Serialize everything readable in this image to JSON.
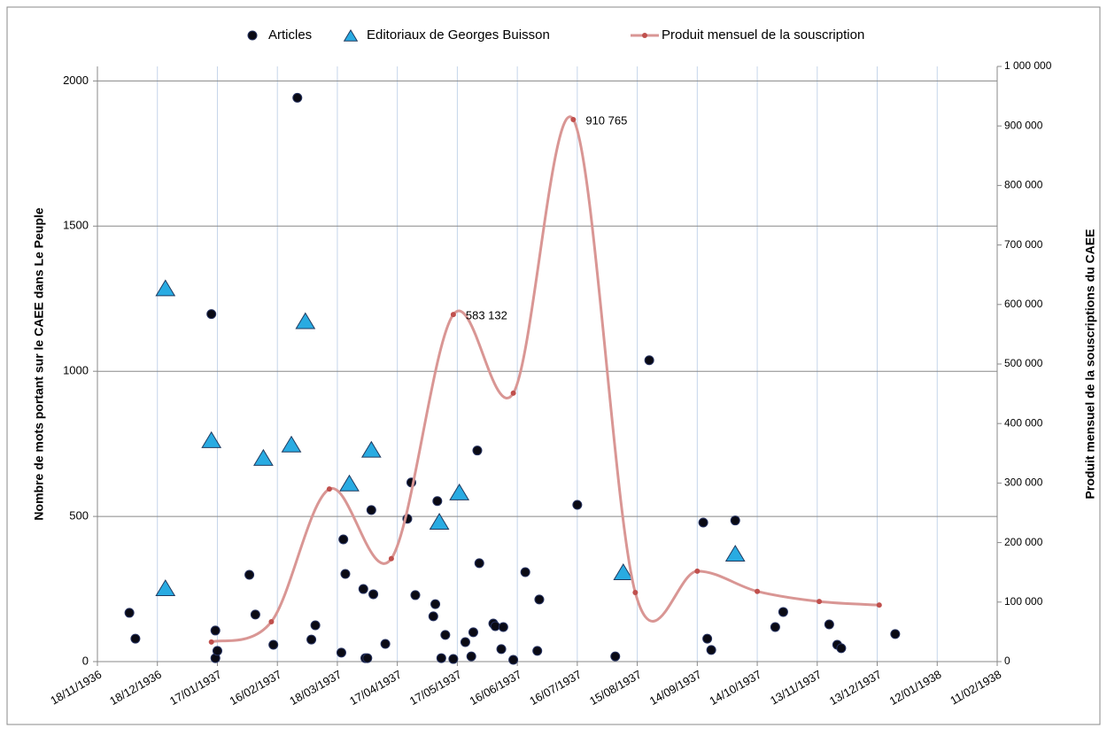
{
  "chart_data": {
    "type": "scatter",
    "y_label": "Nombre de mots portant sur le CAEE dans Le Peuple",
    "y2_label": "Produit mensuel de la souscriptions du CAEE",
    "xlim": [
      "18/11/1936",
      "11/02/1938"
    ],
    "xticks": [
      "18/11/1936",
      "18/12/1936",
      "17/01/1937",
      "16/02/1937",
      "18/03/1937",
      "17/04/1937",
      "17/05/1937",
      "16/06/1937",
      "16/07/1937",
      "15/08/1937",
      "14/09/1937",
      "14/10/1937",
      "13/11/1937",
      "13/12/1937",
      "12/01/1938",
      "11/02/1938"
    ],
    "ylim": [
      0,
      2050
    ],
    "yticks": [
      0,
      500,
      1000,
      1500,
      2000
    ],
    "y2lim": [
      0,
      1000000
    ],
    "y2ticks": [
      {
        "value": 0,
        "label": "0"
      },
      {
        "value": 100000,
        "label": "100 000"
      },
      {
        "value": 200000,
        "label": "200 000"
      },
      {
        "value": 300000,
        "label": "300 000"
      },
      {
        "value": 400000,
        "label": "400 000"
      },
      {
        "value": 500000,
        "label": "500 000"
      },
      {
        "value": 600000,
        "label": "600 000"
      },
      {
        "value": 700000,
        "label": "700 000"
      },
      {
        "value": 800000,
        "label": "800 000"
      },
      {
        "value": 900000,
        "label": "900 000"
      },
      {
        "value": 1000000,
        "label": "1 000 000"
      }
    ],
    "grid": true,
    "legend": "top",
    "series": [
      {
        "name": "Articles",
        "type": "scatter",
        "marker": "circle",
        "color": "#0a0a14",
        "x": [
          "04/12/1936",
          "07/12/1936",
          "14/01/1937",
          "16/01/1937",
          "16/01/1937",
          "17/01/1937",
          "02/02/1937",
          "05/02/1937",
          "14/02/1937",
          "26/02/1937",
          "05/03/1937",
          "07/03/1937",
          "20/03/1937",
          "21/03/1937",
          "22/03/1937",
          "31/03/1937",
          "01/04/1937",
          "02/04/1937",
          "04/04/1937",
          "05/04/1937",
          "11/04/1937",
          "22/04/1937",
          "24/04/1937",
          "26/04/1937",
          "05/05/1937",
          "06/05/1937",
          "07/05/1937",
          "09/05/1937",
          "11/05/1937",
          "15/05/1937",
          "21/05/1937",
          "24/05/1937",
          "25/05/1937",
          "27/05/1937",
          "28/05/1937",
          "04/06/1937",
          "05/06/1937",
          "08/06/1937",
          "09/06/1937",
          "14/06/1937",
          "20/06/1937",
          "26/06/1937",
          "27/06/1937",
          "16/07/1937",
          "04/08/1937",
          "21/08/1937",
          "17/09/1937",
          "19/09/1937",
          "21/09/1937",
          "03/10/1937",
          "23/10/1937",
          "27/10/1937",
          "19/11/1937",
          "23/11/1937",
          "25/11/1937",
          "22/12/1937"
        ],
        "values": [
          168,
          79,
          1197,
          107,
          12,
          37,
          299,
          162,
          58,
          1942,
          76,
          125,
          31,
          421,
          302,
          250,
          12,
          12,
          522,
          232,
          61,
          492,
          617,
          229,
          156,
          198,
          553,
          12,
          92,
          9,
          67,
          18,
          101,
          727,
          339,
          131,
          122,
          43,
          119,
          6,
          308,
          37,
          214,
          540,
          18,
          1038,
          479,
          79,
          40,
          486,
          119,
          171,
          128,
          58,
          46,
          95
        ]
      },
      {
        "name": "Editoriaux de Georges Buisson",
        "type": "scatter",
        "marker": "triangle",
        "color": "#29abe2",
        "x": [
          "22/12/1936",
          "22/12/1936",
          "14/01/1937",
          "09/02/1937",
          "23/02/1937",
          "02/03/1937",
          "24/03/1937",
          "04/04/1937",
          "08/05/1937",
          "18/05/1937",
          "08/08/1937",
          "03/10/1937"
        ],
        "values": [
          250,
          1283,
          760,
          699,
          745,
          1170,
          611,
          727,
          479,
          580,
          305,
          369
        ]
      },
      {
        "name": "Produit mensuel de la souscription",
        "type": "line",
        "axis": "y2",
        "color": "#d99694",
        "marker_color": "#c0504d",
        "x": [
          "14/01/1937",
          "13/02/1937",
          "14/03/1937",
          "14/04/1937",
          "15/05/1937",
          "14/06/1937",
          "14/07/1937",
          "14/08/1937",
          "14/09/1937",
          "14/10/1937",
          "14/11/1937",
          "14/12/1937"
        ],
        "values": [
          33000,
          67000,
          290000,
          173000,
          583132,
          451000,
          910765,
          116000,
          152000,
          118000,
          101000,
          95000
        ],
        "value_labels": [
          null,
          null,
          null,
          null,
          "583 132",
          null,
          "910 765",
          null,
          null,
          null,
          null,
          null
        ]
      }
    ]
  }
}
